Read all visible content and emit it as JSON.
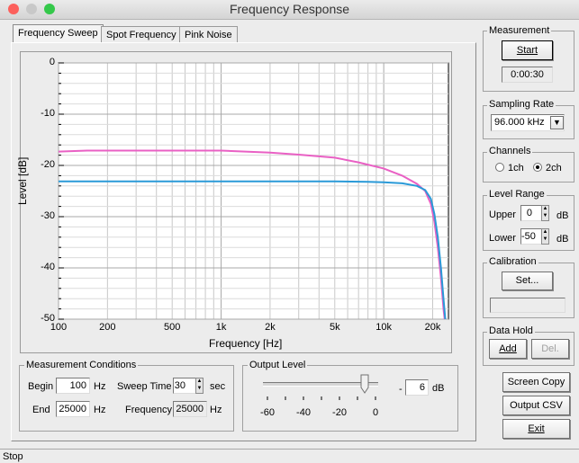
{
  "window": {
    "title": "Frequency Response"
  },
  "tabs": [
    {
      "label": "Frequency Sweep",
      "active": true
    },
    {
      "label": "Spot Frequency",
      "active": false
    },
    {
      "label": "Pink Noise",
      "active": false
    }
  ],
  "chart_data": {
    "type": "line",
    "xlabel": "Frequency [Hz]",
    "ylabel": "Level [dB]",
    "xscale": "log",
    "xlim": [
      100,
      25000
    ],
    "ylim": [
      -50,
      0
    ],
    "x_ticks": [
      "100",
      "200",
      "500",
      "1k",
      "2k",
      "5k",
      "10k",
      "20k"
    ],
    "y_ticks": [
      "0",
      "-10",
      "-20",
      "-30",
      "-40",
      "-50"
    ],
    "grid": true,
    "series": [
      {
        "color": "#e960c4",
        "points": [
          [
            100,
            -17.3
          ],
          [
            150,
            -17.1
          ],
          [
            300,
            -17.1
          ],
          [
            1000,
            -17.1
          ],
          [
            2000,
            -17.5
          ],
          [
            3000,
            -17.9
          ],
          [
            5000,
            -18.5
          ],
          [
            7000,
            -19.4
          ],
          [
            10000,
            -20.6
          ],
          [
            13000,
            -22.0
          ],
          [
            16000,
            -23.6
          ],
          [
            18000,
            -25.0
          ],
          [
            19500,
            -27.5
          ],
          [
            20500,
            -31.0
          ],
          [
            21500,
            -36.0
          ],
          [
            22500,
            -42.0
          ],
          [
            23300,
            -48.0
          ],
          [
            23700,
            -50
          ]
        ]
      },
      {
        "color": "#2a9ad8",
        "points": [
          [
            100,
            -23.1
          ],
          [
            200,
            -23.1
          ],
          [
            500,
            -23.1
          ],
          [
            1000,
            -23.1
          ],
          [
            2000,
            -23.1
          ],
          [
            5000,
            -23.1
          ],
          [
            8000,
            -23.2
          ],
          [
            10000,
            -23.3
          ],
          [
            13000,
            -23.5
          ],
          [
            16000,
            -24.0
          ],
          [
            18000,
            -24.8
          ],
          [
            19500,
            -26.5
          ],
          [
            20500,
            -29.5
          ],
          [
            21500,
            -34.0
          ],
          [
            22500,
            -40.0
          ],
          [
            23300,
            -46.0
          ],
          [
            23900,
            -50
          ]
        ]
      }
    ]
  },
  "conditions": {
    "title": "Measurement Conditions",
    "begin_label": "Begin",
    "begin_value": "100",
    "begin_unit": "Hz",
    "end_label": "End",
    "end_value": "25000",
    "end_unit": "Hz",
    "sweep_label": "Sweep Time",
    "sweep_value": "30",
    "sweep_unit": "sec",
    "freq_label": "Frequency",
    "freq_value": "25000",
    "freq_unit": "Hz"
  },
  "output_level": {
    "title": "Output Level",
    "value": "6",
    "unit": "dB",
    "sign": "-",
    "slider_value": -6,
    "scale": [
      "-60",
      "-40",
      "-20",
      "0"
    ]
  },
  "measurement": {
    "title": "Measurement",
    "start_label": "Start",
    "time": "0:00:30"
  },
  "sampling": {
    "title": "Sampling Rate",
    "value": "96.000 kHz"
  },
  "channels": {
    "title": "Channels",
    "opt1": "1ch",
    "opt2": "2ch",
    "selected": "2ch"
  },
  "level_range": {
    "title": "Level Range",
    "upper_label": "Upper",
    "upper_value": "0",
    "lower_label": "Lower",
    "lower_value": "-50",
    "unit": "dB"
  },
  "calibration": {
    "title": "Calibration",
    "set_label": "Set..."
  },
  "data_hold": {
    "title": "Data Hold",
    "add_label": "Add",
    "del_label": "Del."
  },
  "buttons": {
    "screen_copy": "Screen Copy",
    "output_csv": "Output CSV",
    "exit": "Exit"
  },
  "status": {
    "text": "Stop"
  }
}
